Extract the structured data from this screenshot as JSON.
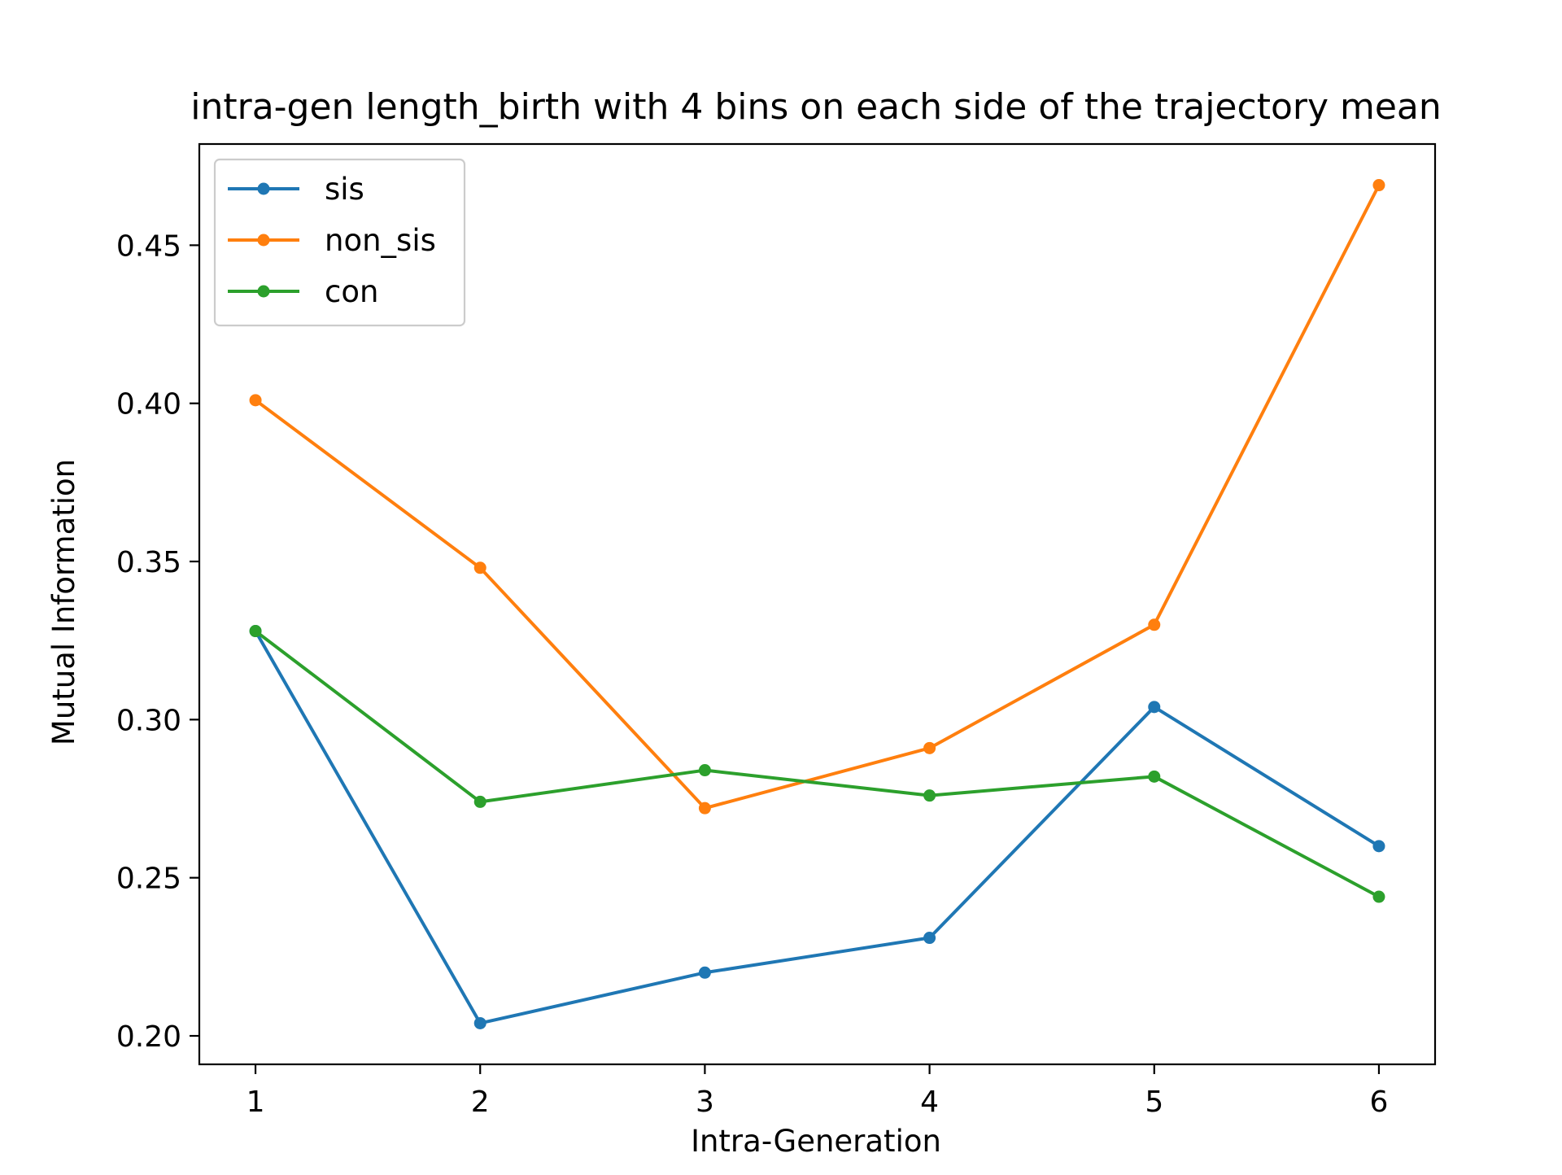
{
  "chart_data": {
    "type": "line",
    "title": "intra-gen length_birth with 4 bins on each side of the trajectory mean",
    "xlabel": "Intra-Generation",
    "ylabel": "Mutual Information",
    "x": [
      1,
      2,
      3,
      4,
      5,
      6
    ],
    "x_ticks": [
      "1",
      "2",
      "3",
      "4",
      "5",
      "6"
    ],
    "xlim": [
      0.75,
      6.25
    ],
    "y_ticks": [
      "0.20",
      "0.25",
      "0.30",
      "0.35",
      "0.40",
      "0.45"
    ],
    "ylim": [
      0.191,
      0.482
    ],
    "grid": false,
    "legend_position": "upper left",
    "series": [
      {
        "name": "sis",
        "color": "#1f77b4",
        "marker": "circle",
        "values": [
          0.328,
          0.204,
          0.22,
          0.231,
          0.304,
          0.26
        ]
      },
      {
        "name": "non_sis",
        "color": "#ff7f0e",
        "marker": "circle",
        "values": [
          0.401,
          0.348,
          0.272,
          0.291,
          0.33,
          0.469
        ]
      },
      {
        "name": "con",
        "color": "#2ca02c",
        "marker": "circle",
        "values": [
          0.328,
          0.274,
          0.284,
          0.276,
          0.282,
          0.244
        ]
      }
    ]
  }
}
